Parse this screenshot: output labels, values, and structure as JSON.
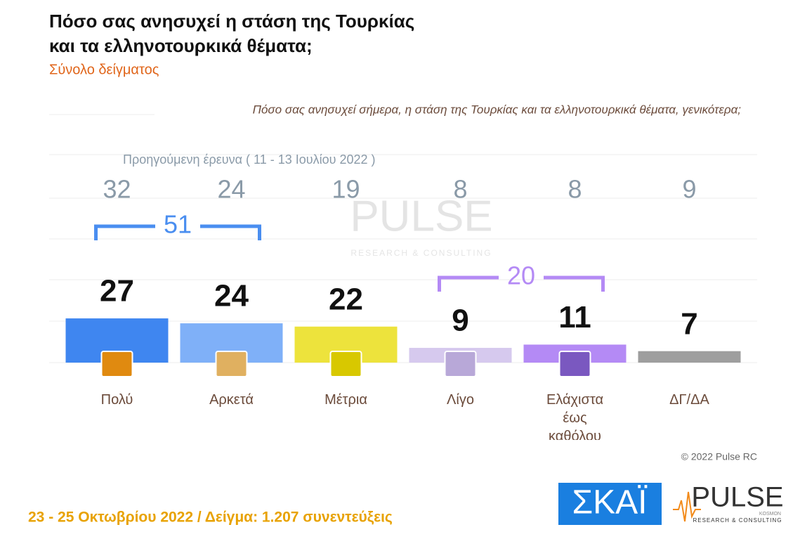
{
  "chart_data": {
    "type": "bar",
    "title": [
      "Πόσο σας ανησυχεί η στάση της Τουρκίας",
      "και τα ελληνοτουρκικά θέματα;"
    ],
    "subtitle": "Σύνολο δείγματος",
    "question": "Πόσο σας ανησυχεί σήμερα, η στάση της Τουρκίας και τα ελληνοτουρκικά θέματα, γενικότερα;",
    "categories": [
      "Πολύ",
      "Αρκετά",
      "Μέτρια",
      "Λίγο",
      "Ελάχιστα έως καθόλου",
      "ΔΓ/ΔΑ"
    ],
    "values": [
      27,
      24,
      22,
      9,
      11,
      7
    ],
    "colors": [
      "#3f86f0",
      "#7fb0f8",
      "#ede33c",
      "#d6c9ee",
      "#b48af5",
      "#9e9e9e"
    ],
    "previous": {
      "label": "Προηγούμενη έρευνα  ( 11 - 13 Ιουλίου  2022 )",
      "values": [
        32,
        24,
        19,
        8,
        8,
        9
      ]
    },
    "groups": [
      51,
      20
    ],
    "group_colors": [
      "#4a8ef0",
      "#b48af5"
    ],
    "copyright": "© 2022 Pulse RC",
    "footer": "23 - 25  Οκτωβρίου  2022  /  Δείγμα:  1.207 συνεντεύξεις",
    "logos": {
      "skai": "ΣΚΑΪ",
      "pulse": "PULSE",
      "pulse_tagline": "RESEARCH & CONSULTING",
      "pulse_small": "KOSMON"
    }
  }
}
